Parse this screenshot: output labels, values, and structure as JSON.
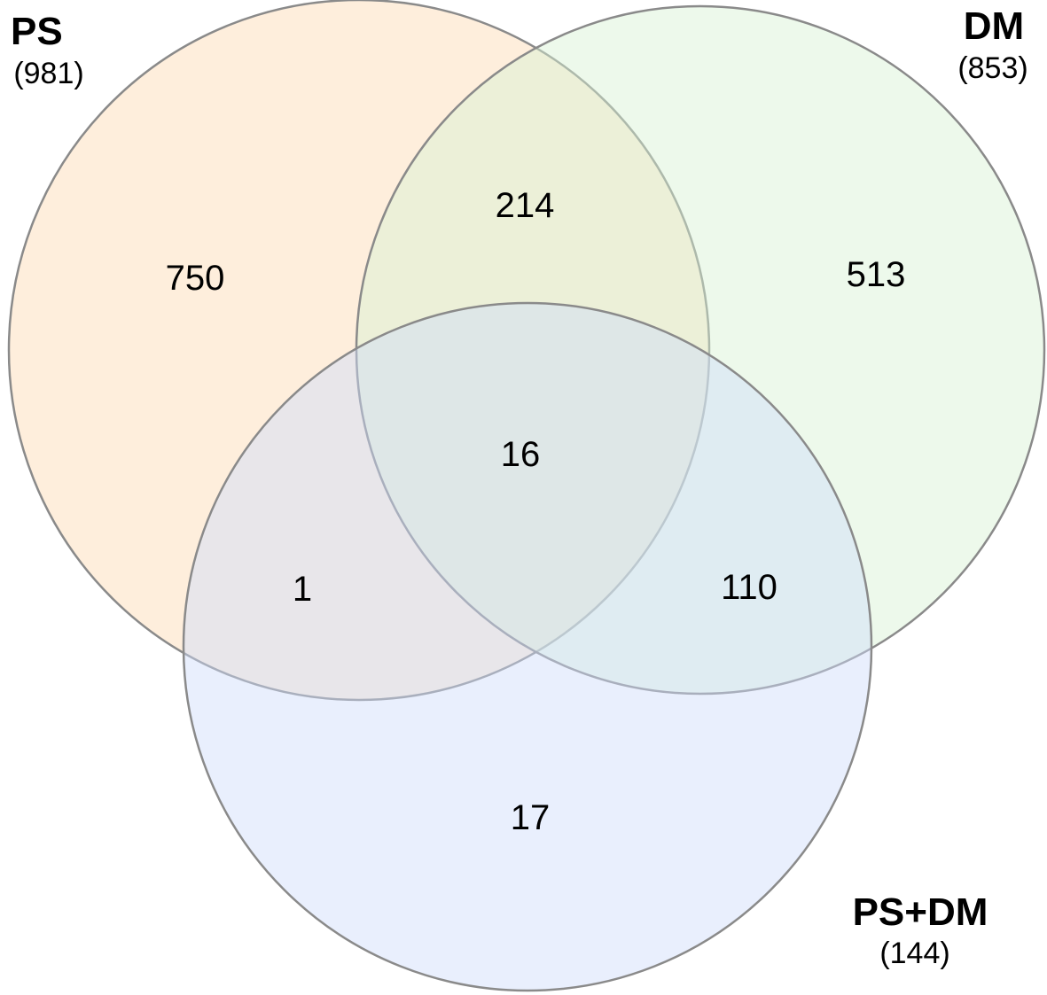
{
  "sets": [
    {
      "id": "ps",
      "name": "PS",
      "count": "(981)",
      "color": "#fde2c4"
    },
    {
      "id": "dm",
      "name": "DM",
      "count": "(853)",
      "color": "#d6f2d2"
    },
    {
      "id": "psdm",
      "name": "PS+DM",
      "count": "(144)",
      "color": "#cfdcfa"
    }
  ],
  "regions": {
    "ps_only": "750",
    "dm_only": "513",
    "psdm_only": "17",
    "ps_dm": "214",
    "ps_psdm": "1",
    "dm_psdm": "110",
    "all": "16"
  },
  "outline_color": "#8a8a8a"
}
